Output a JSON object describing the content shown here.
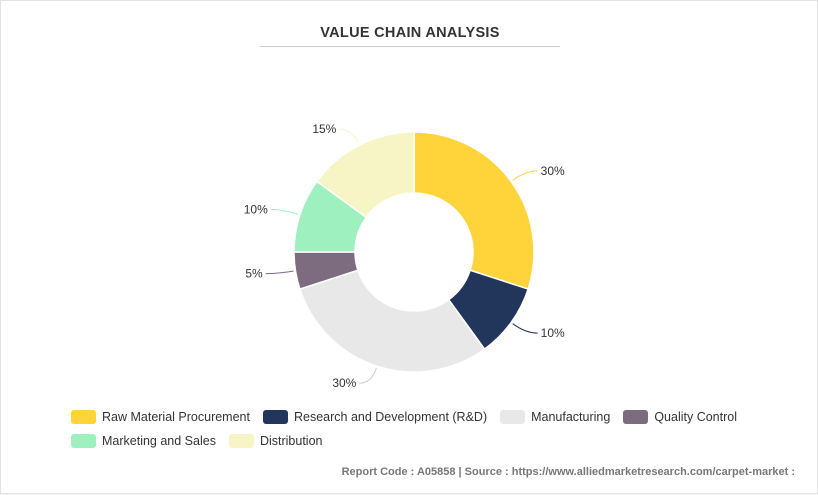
{
  "chart_data": {
    "type": "pie",
    "donut": true,
    "title": "VALUE CHAIN ANALYSIS",
    "categories": [
      "Raw Material Procurement",
      "Research and Development (R&D)",
      "Manufacturing",
      "Quality Control",
      "Marketing and Sales",
      "Distribution"
    ],
    "values": [
      30,
      10,
      30,
      5,
      10,
      15
    ],
    "data_labels": [
      "30%",
      "10%",
      "30%",
      "5%",
      "10%",
      "15%"
    ],
    "colors": [
      "#ffd43b",
      "#22355a",
      "#e8e8e8",
      "#7d6b80",
      "#9ef0bf",
      "#f7f5c6"
    ],
    "legend_placement": "bottom-left"
  },
  "footer": {
    "text": "Report Code : A05858  |  Source : https://www.alliedmarketresearch.com/carpet-market :"
  }
}
